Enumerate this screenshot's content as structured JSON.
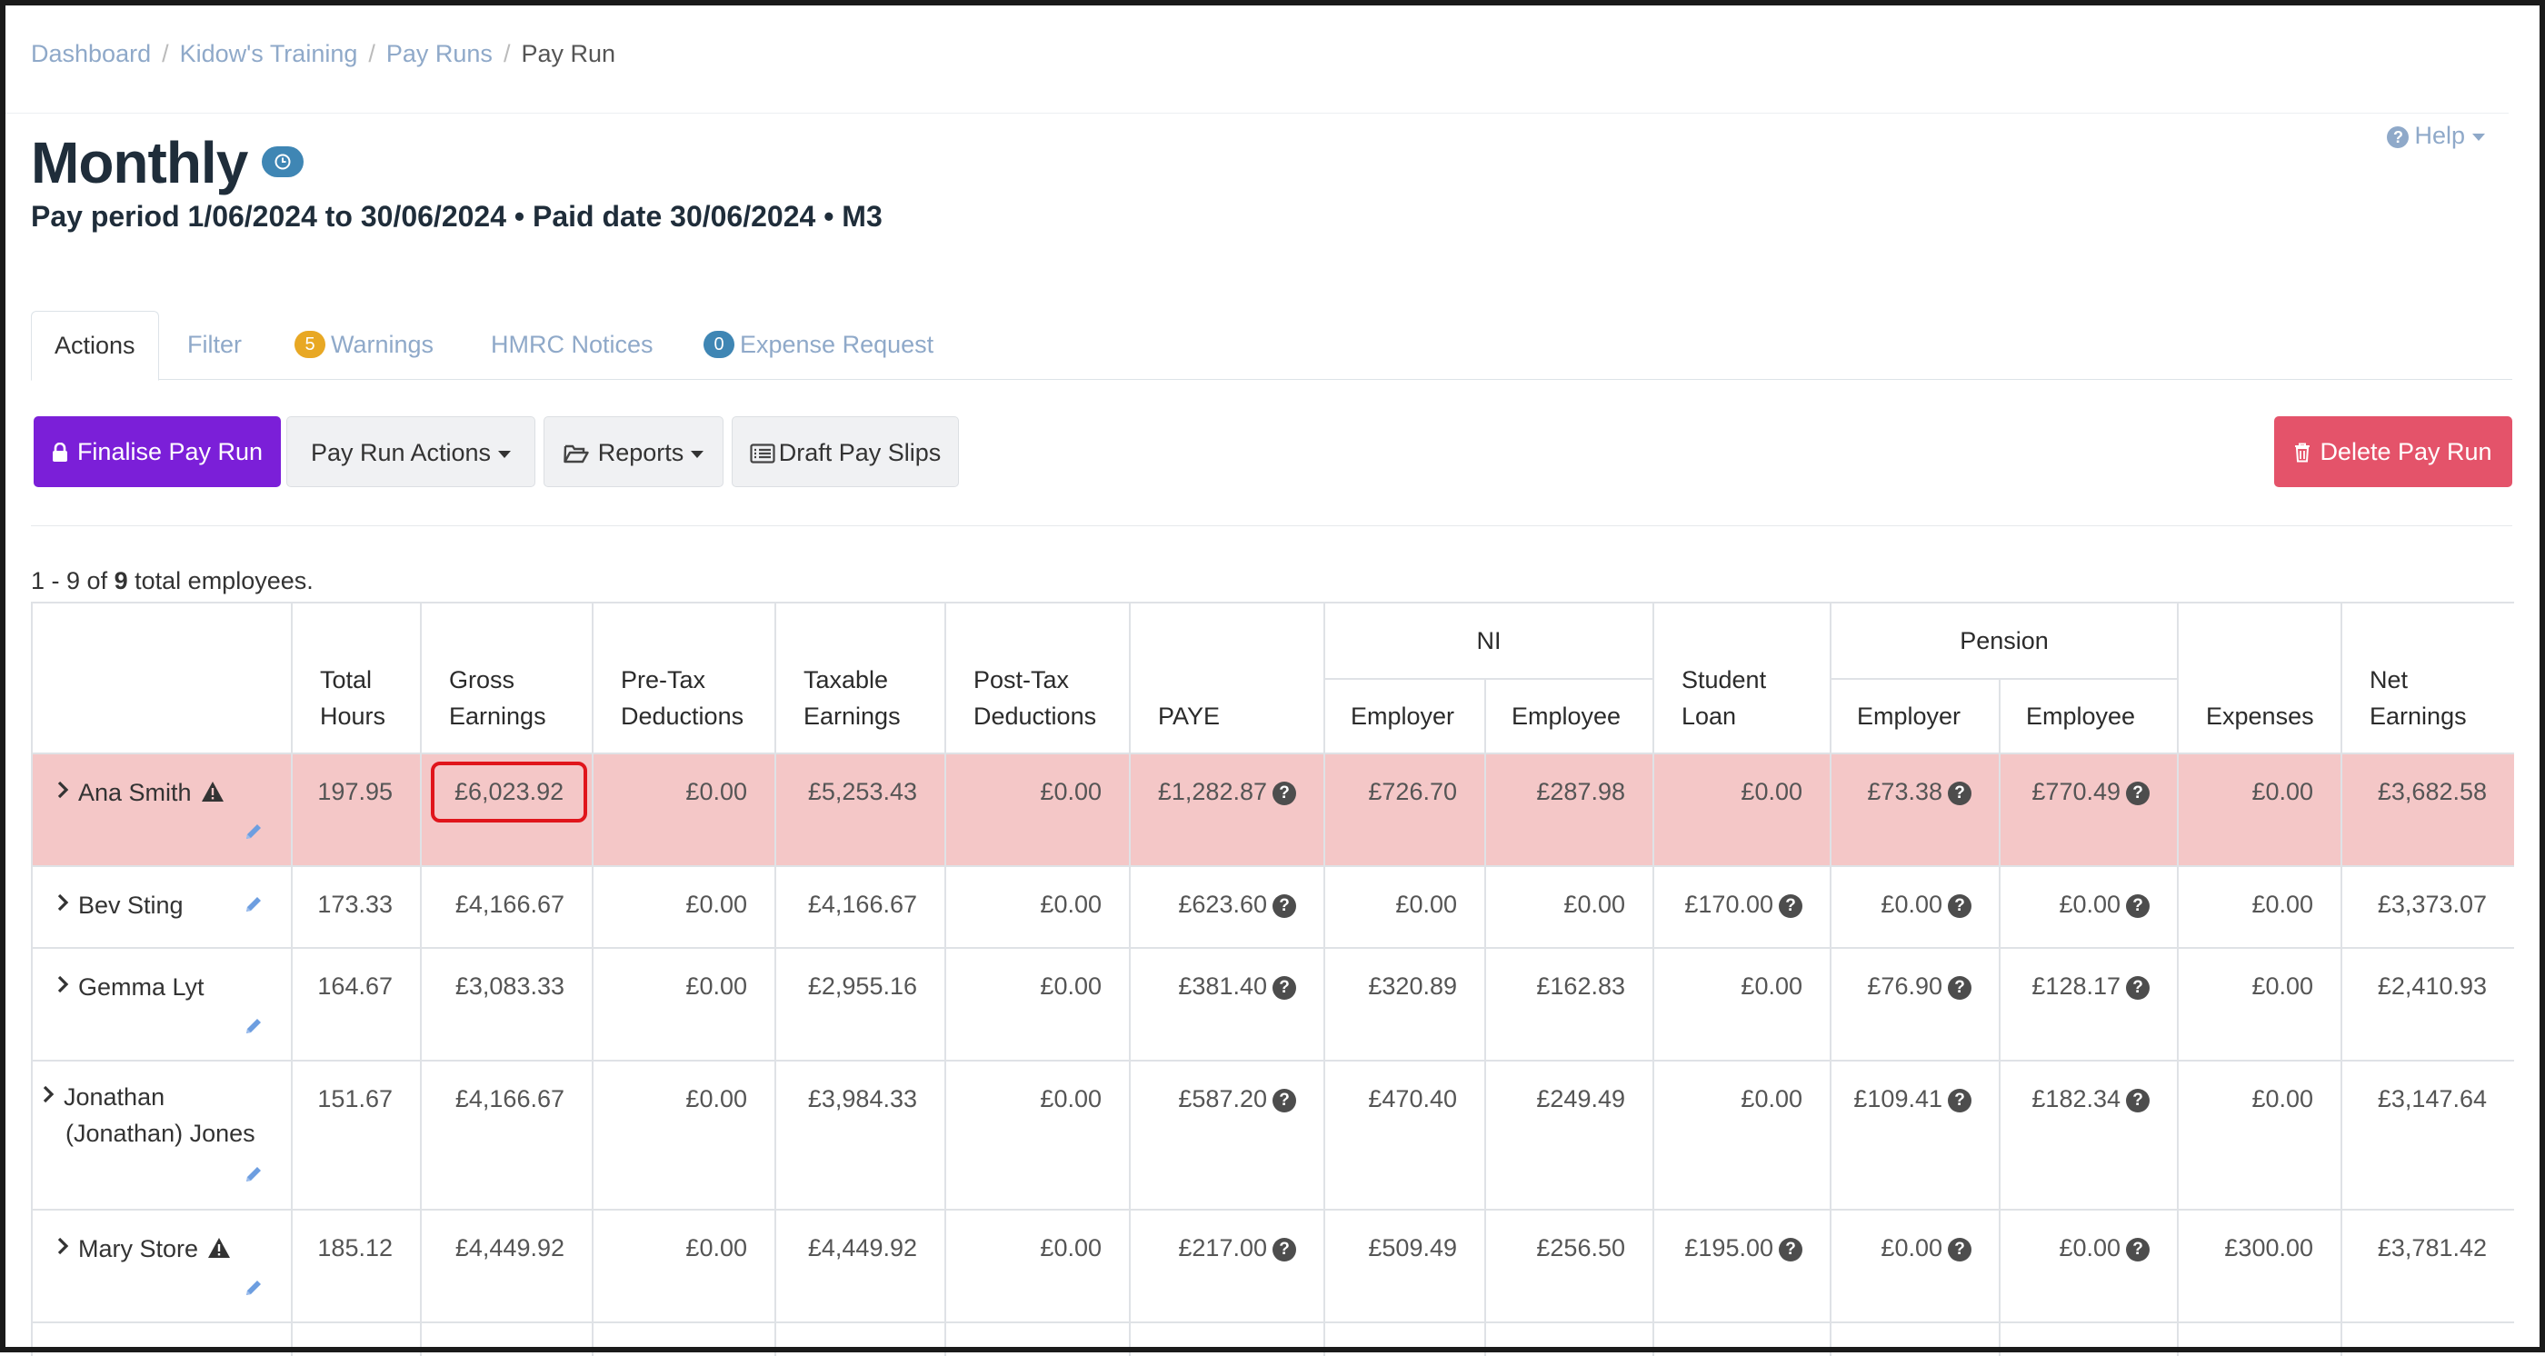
{
  "breadcrumb": [
    "Dashboard",
    "Kidow's Training",
    "Pay Runs",
    "Pay Run"
  ],
  "page": {
    "title": "Monthly",
    "subtitle": "Pay period 1/06/2024 to 30/06/2024 • Paid date 30/06/2024 • M3",
    "help_label": "Help"
  },
  "tabs": {
    "actions": "Actions",
    "filter": "Filter",
    "warnings_label": "Warnings",
    "warnings_count": "5",
    "hmrc": "HMRC Notices",
    "expense_label": "Expense Request",
    "expense_count": "0"
  },
  "toolbar": {
    "finalise": "Finalise Pay Run",
    "pay_run_actions": "Pay Run Actions",
    "reports": "Reports",
    "draft_pay_slips": "Draft Pay Slips",
    "delete": "Delete Pay Run"
  },
  "count": {
    "range": "1 - 9",
    "of": "of",
    "total": "9",
    "suffix": "total employees."
  },
  "table": {
    "headers": {
      "total_hours": "Total Hours",
      "gross": "Gross Earnings",
      "pretax": "Pre-Tax Deductions",
      "taxable": "Taxable Earnings",
      "posttax": "Post-Tax Deductions",
      "paye": "PAYE",
      "ni": "NI",
      "ni_employer": "Employer",
      "ni_employee": "Employee",
      "student_loan": "Student Loan",
      "pension": "Pension",
      "pension_employer": "Employer",
      "pension_employee": "Employee",
      "expenses": "Expenses",
      "net": "Net Earnings"
    },
    "rows": [
      {
        "name": "Ana Smith",
        "hours": "197.95",
        "gross": "£6,023.92",
        "pretax": "£0.00",
        "taxable": "£5,253.43",
        "posttax": "£0.00",
        "paye": "£1,282.87",
        "ni_er": "£726.70",
        "ni_ee": "£287.98",
        "loan": "£0.00",
        "pen_er": "£73.38",
        "pen_ee": "£770.49",
        "expenses": "£0.00",
        "net": "£3,682.58"
      },
      {
        "name": "Bev Sting",
        "hours": "173.33",
        "gross": "£4,166.67",
        "pretax": "£0.00",
        "taxable": "£4,166.67",
        "posttax": "£0.00",
        "paye": "£623.60",
        "ni_er": "£0.00",
        "ni_ee": "£0.00",
        "loan": "£170.00",
        "pen_er": "£0.00",
        "pen_ee": "£0.00",
        "expenses": "£0.00",
        "net": "£3,373.07"
      },
      {
        "name": "Gemma Lyt",
        "hours": "164.67",
        "gross": "£3,083.33",
        "pretax": "£0.00",
        "taxable": "£2,955.16",
        "posttax": "£0.00",
        "paye": "£381.40",
        "ni_er": "£320.89",
        "ni_ee": "£162.83",
        "loan": "£0.00",
        "pen_er": "£76.90",
        "pen_ee": "£128.17",
        "expenses": "£0.00",
        "net": "£2,410.93"
      },
      {
        "name": "Jonathan (Jonathan) Jones",
        "hours": "151.67",
        "gross": "£4,166.67",
        "pretax": "£0.00",
        "taxable": "£3,984.33",
        "posttax": "£0.00",
        "paye": "£587.20",
        "ni_er": "£470.40",
        "ni_ee": "£249.49",
        "loan": "£0.00",
        "pen_er": "£109.41",
        "pen_ee": "£182.34",
        "expenses": "£0.00",
        "net": "£3,147.64"
      },
      {
        "name": "Mary Store",
        "hours": "185.12",
        "gross": "£4,449.92",
        "pretax": "£0.00",
        "taxable": "£4,449.92",
        "posttax": "£0.00",
        "paye": "£217.00",
        "ni_er": "£509.49",
        "ni_ee": "£256.50",
        "loan": "£195.00",
        "pen_er": "£0.00",
        "pen_ee": "£0.00",
        "expenses": "£300.00",
        "net": "£3,781.42"
      }
    ]
  },
  "colors": {
    "finalise": "#7b1fd8",
    "delete": "#e4536a",
    "highlight_row": "#f4c7c7",
    "warnings_badge": "#e8a824",
    "expense_badge": "#3f86b4",
    "link": "#8fa9c9",
    "annotation_box": "#e0151b"
  },
  "icons": {
    "lock": "lock-icon",
    "folder": "folder-open-icon",
    "list": "list-alt-icon",
    "trash": "trash-icon",
    "clock": "clock-icon",
    "warning": "warning-icon",
    "pencil": "pencil-icon",
    "question": "question-circle-icon",
    "chevron": "chevron-right-icon"
  }
}
